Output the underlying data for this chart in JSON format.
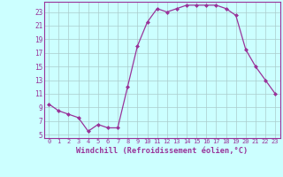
{
  "x": [
    0,
    1,
    2,
    3,
    4,
    5,
    6,
    7,
    8,
    9,
    10,
    11,
    12,
    13,
    14,
    15,
    16,
    17,
    18,
    19,
    20,
    21,
    22,
    23
  ],
  "y": [
    9.5,
    8.5,
    8.0,
    7.5,
    5.5,
    6.5,
    6.0,
    6.0,
    12.0,
    18.0,
    21.5,
    23.5,
    23.0,
    23.5,
    24.0,
    24.0,
    24.0,
    24.0,
    23.5,
    22.5,
    17.5,
    15.0,
    13.0,
    11.0
  ],
  "line_color": "#993399",
  "marker": "D",
  "marker_size": 2,
  "bg_color": "#ccffff",
  "grid_color": "#aacccc",
  "xlabel": "Windchill (Refroidissement éolien,°C)",
  "xlabel_color": "#993399",
  "tick_color": "#993399",
  "ylabel_ticks": [
    5,
    7,
    9,
    11,
    13,
    15,
    17,
    19,
    21,
    23
  ],
  "xlim": [
    -0.5,
    23.5
  ],
  "ylim": [
    4.5,
    24.5
  ],
  "xticks": [
    0,
    1,
    2,
    3,
    4,
    5,
    6,
    7,
    8,
    9,
    10,
    11,
    12,
    13,
    14,
    15,
    16,
    17,
    18,
    19,
    20,
    21,
    22,
    23
  ]
}
